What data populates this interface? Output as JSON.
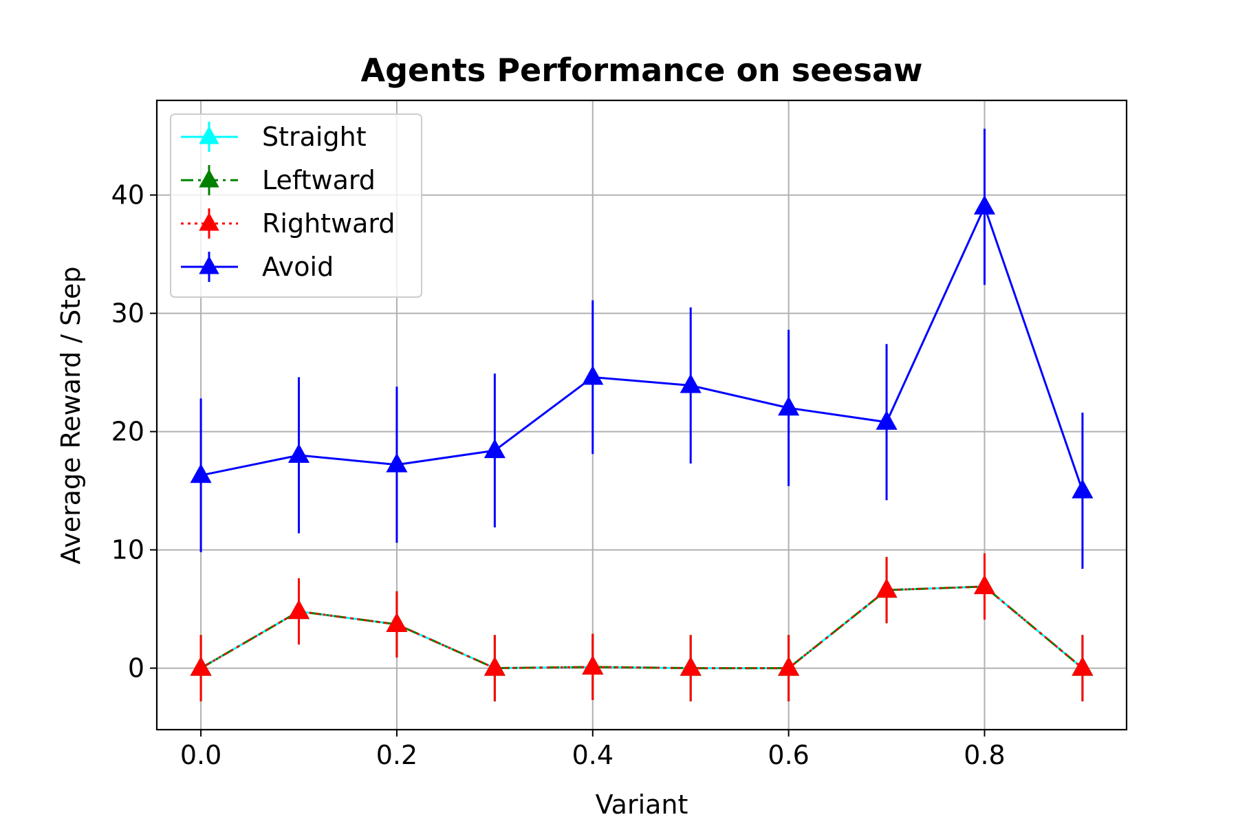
{
  "chart_data": {
    "type": "line",
    "title": "Agents Performance on seesaw",
    "xlabel": "Variant",
    "ylabel": "Average Reward / Step",
    "x": [
      0.0,
      0.1,
      0.2,
      0.3,
      0.4,
      0.5,
      0.6,
      0.7,
      0.8,
      0.9
    ],
    "xlim": [
      -0.045,
      0.945
    ],
    "ylim": [
      -5.2,
      48.0
    ],
    "x_ticks": [
      "0.0",
      "0.2",
      "0.4",
      "0.6",
      "0.8"
    ],
    "x_tick_values": [
      0.0,
      0.2,
      0.4,
      0.6,
      0.8
    ],
    "y_ticks": [
      "0",
      "10",
      "20",
      "30",
      "40"
    ],
    "y_tick_values": [
      0,
      10,
      20,
      30,
      40
    ],
    "grid": true,
    "legend_position": "top-left",
    "series": [
      {
        "name": "Straight",
        "color": "#00ffff",
        "linestyle": "solid",
        "marker": "triangle-up",
        "values": [
          0.0,
          4.8,
          3.7,
          0.0,
          0.1,
          0.0,
          0.0,
          6.6,
          6.9,
          0.0
        ],
        "errors": [
          2.8,
          2.8,
          2.8,
          2.8,
          2.8,
          2.8,
          2.8,
          2.8,
          2.8,
          2.8
        ]
      },
      {
        "name": "Leftward",
        "color": "#008000",
        "linestyle": "dashdot",
        "marker": "triangle-up",
        "values": [
          0.0,
          4.8,
          3.7,
          0.0,
          0.1,
          0.0,
          0.0,
          6.6,
          6.9,
          0.0
        ],
        "errors": [
          2.8,
          2.8,
          2.8,
          2.8,
          2.8,
          2.8,
          2.8,
          2.8,
          2.8,
          2.8
        ]
      },
      {
        "name": "Rightward",
        "color": "#ff0000",
        "linestyle": "dotted",
        "marker": "triangle-up",
        "values": [
          0.0,
          4.8,
          3.7,
          0.0,
          0.1,
          0.0,
          0.0,
          6.6,
          6.9,
          0.0
        ],
        "errors": [
          2.8,
          2.8,
          2.8,
          2.8,
          2.8,
          2.8,
          2.8,
          2.8,
          2.8,
          2.8
        ]
      },
      {
        "name": "Avoid",
        "color": "#0000ff",
        "linestyle": "solid",
        "marker": "triangle-up",
        "values": [
          16.3,
          18.0,
          17.2,
          18.4,
          24.6,
          23.9,
          22.0,
          20.8,
          39.0,
          15.0
        ],
        "errors": [
          6.5,
          6.6,
          6.6,
          6.5,
          6.5,
          6.6,
          6.6,
          6.6,
          6.6,
          6.6
        ]
      }
    ]
  }
}
